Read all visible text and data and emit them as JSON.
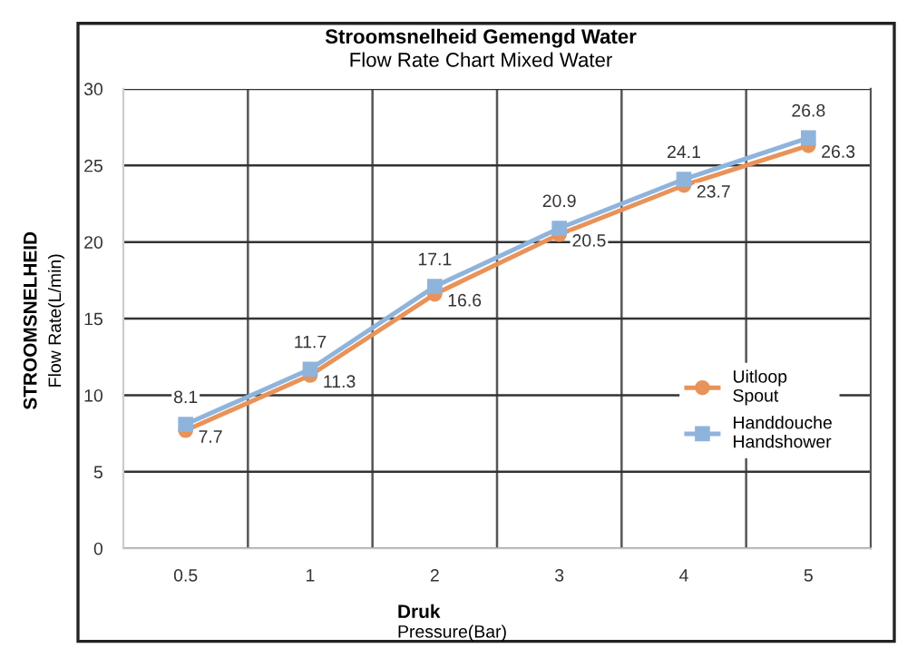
{
  "chart_data": {
    "type": "line",
    "title": "Stroomsnelheid Gemengd Water",
    "subtitle": "Flow Rate Chart Mixed Water",
    "xlabel": "Druk\nPressure(Bar)",
    "ylabel": "STROOMSNELHEID\nFlow Rate(L/min)",
    "categories": [
      "0.5",
      "1",
      "2",
      "3",
      "4",
      "5"
    ],
    "series": [
      {
        "name": "Uitloop\nSpout",
        "color": "#e8935a",
        "marker": "circle",
        "values": [
          7.7,
          11.3,
          16.6,
          20.5,
          23.7,
          26.3
        ]
      },
      {
        "name": "Handdouche\nHandshower",
        "color": "#8fb4dc",
        "marker": "square",
        "values": [
          8.1,
          11.7,
          17.1,
          20.9,
          24.1,
          26.8
        ]
      }
    ],
    "ylim": [
      0,
      30
    ],
    "yticks": [
      0,
      5,
      10,
      15,
      20,
      25,
      30
    ],
    "grid": true,
    "legend": "right",
    "data_labels": true,
    "line_style": "solid"
  }
}
